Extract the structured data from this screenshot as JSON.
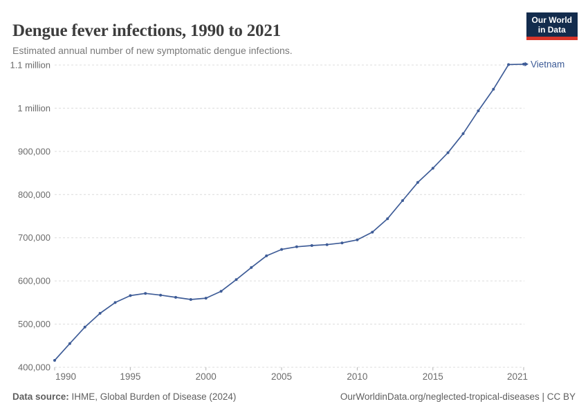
{
  "header": {
    "title": "Dengue fever infections, 1990 to 2021",
    "subtitle": "Estimated annual number of new symptomatic dengue infections.",
    "logo": {
      "line1": "Our World",
      "line2": "in Data"
    }
  },
  "footer": {
    "datasource_label": "Data source:",
    "datasource_value": "IHME, Global Burden of Disease (2024)",
    "attribution": "OurWorldinData.org/neglected-tropical-diseases | CC BY"
  },
  "colors": {
    "line": "#3e5c97",
    "entity_label": "#3e5c97",
    "grid": "#dcdcdc",
    "axis_text": "#6b6b6b",
    "tick": "#b4b4b4",
    "logo_background": "#132c4d",
    "logo_accent_red": "#d8352a",
    "title_text": "#3d3d3d",
    "subtitle_text": "#787878",
    "footer_text": "#5f5f5f"
  },
  "chart_data": {
    "type": "line",
    "title": "Dengue fever infections, 1990 to 2021",
    "subtitle": "Estimated annual number of new symptomatic dengue infections.",
    "xlabel": "",
    "ylabel": "",
    "xlim": [
      1990,
      2021
    ],
    "ylim": [
      400000,
      1100000
    ],
    "grid": "horizontal-dashed",
    "legend_position": "end-of-line-label",
    "x_ticks": [
      1990,
      1995,
      2000,
      2005,
      2010,
      2015,
      2021
    ],
    "y_ticks": [
      {
        "value": 400000,
        "label": "400,000"
      },
      {
        "value": 500000,
        "label": "500,000"
      },
      {
        "value": 600000,
        "label": "600,000"
      },
      {
        "value": 700000,
        "label": "700,000"
      },
      {
        "value": 800000,
        "label": "800,000"
      },
      {
        "value": 900000,
        "label": "900,000"
      },
      {
        "value": 1000000,
        "label": "1 million"
      },
      {
        "value": 1100000,
        "label": "1.1 million"
      }
    ],
    "series": [
      {
        "name": "Vietnam",
        "color": "#3e5c97",
        "x": [
          1990,
          1991,
          1992,
          1993,
          1994,
          1995,
          1996,
          1997,
          1998,
          1999,
          2000,
          2001,
          2002,
          2003,
          2004,
          2005,
          2006,
          2007,
          2008,
          2009,
          2010,
          2011,
          2012,
          2013,
          2014,
          2015,
          2016,
          2017,
          2018,
          2019,
          2020,
          2021
        ],
        "values": [
          416000,
          455000,
          493000,
          525000,
          550000,
          566000,
          571000,
          567000,
          562000,
          557000,
          560000,
          576000,
          603000,
          631000,
          658000,
          673000,
          679000,
          682000,
          684000,
          688000,
          695000,
          713000,
          744000,
          786000,
          828000,
          861000,
          897000,
          941000,
          994000,
          1044000,
          1101000,
          1102000
        ]
      }
    ]
  }
}
